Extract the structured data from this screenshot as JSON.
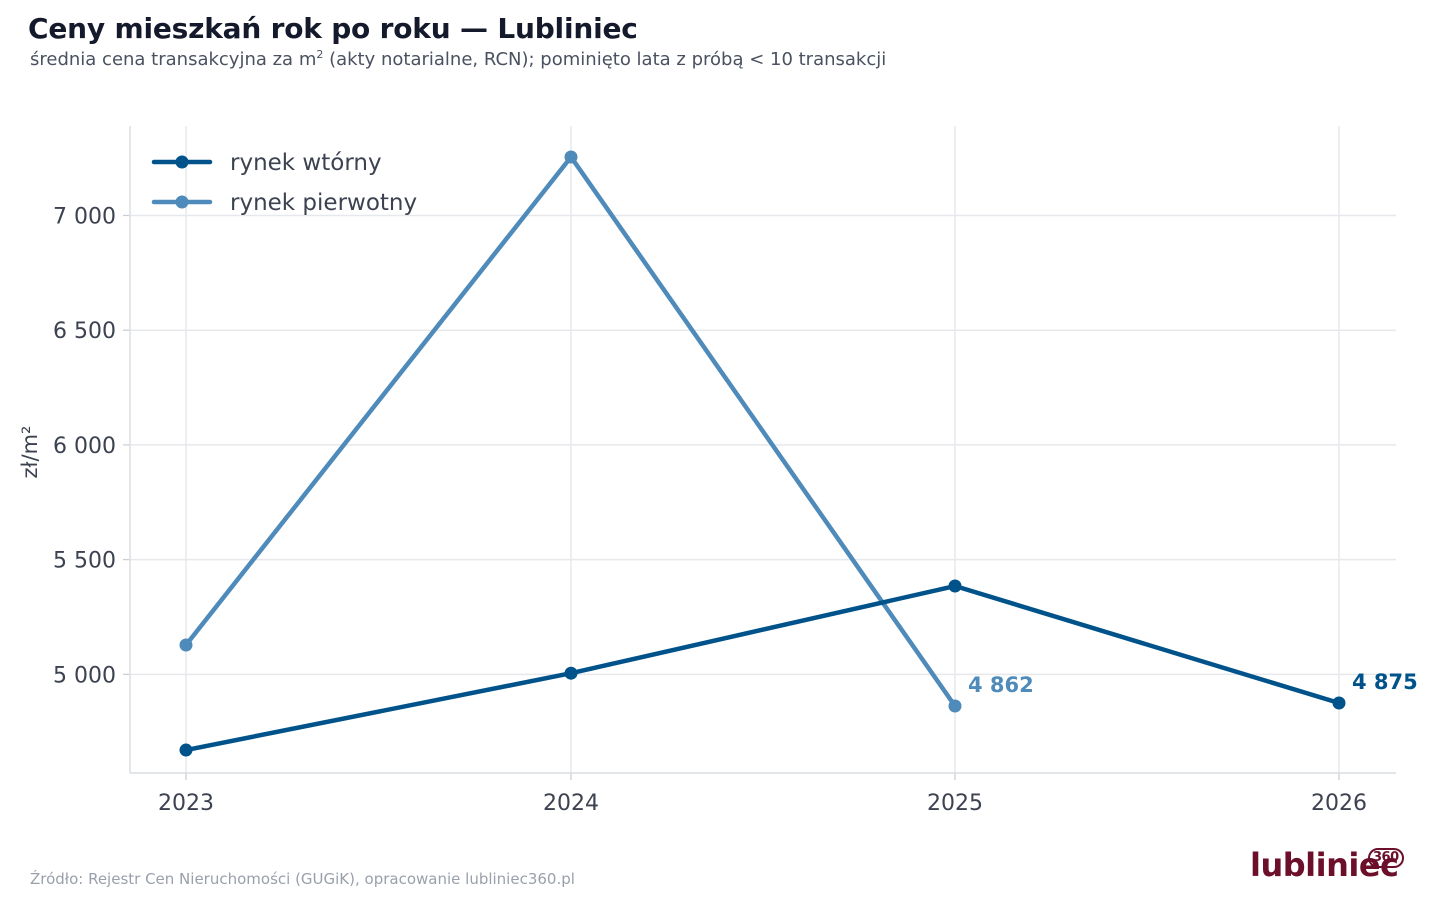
{
  "title": "Ceny mieszkań rok po roku — Lubliniec",
  "subtitle_pre": "średnia cena transakcyjna za m",
  "subtitle_sup": "2",
  "subtitle_post": " (akty notarialne, RCN); pominięto lata z próbą < 10 transakcji",
  "source": "Źródło: Rejestr Cen Nieruchomości (GUGiK), opracowanie lubliniec360.pl",
  "logo": {
    "text": "lubliniec",
    "sup": "360"
  },
  "chart_data": {
    "type": "line",
    "x": [
      2023,
      2024,
      2025,
      2026
    ],
    "x_tick_labels": [
      "2023",
      "2024",
      "2025",
      "2026"
    ],
    "ylabel": "zł/m²",
    "ylim": [
      4570,
      7390
    ],
    "y_ticks": [
      5000,
      5500,
      6000,
      6500,
      7000
    ],
    "y_tick_labels": [
      "5 000",
      "5 500",
      "6 000",
      "6 500",
      "7 000"
    ],
    "grid": true,
    "legend_position": "top-left",
    "series": [
      {
        "name": "rynek wtórny",
        "color": "#00538a",
        "x": [
          2023,
          2024,
          2025,
          2026
        ],
        "values": [
          4670,
          5005,
          5385,
          4875
        ],
        "end_label": "4 875"
      },
      {
        "name": "rynek pierwotny",
        "color": "#4f8bba",
        "x": [
          2023,
          2024,
          2025
        ],
        "values": [
          5128,
          7255,
          4862
        ],
        "end_label": "4 862"
      }
    ]
  }
}
